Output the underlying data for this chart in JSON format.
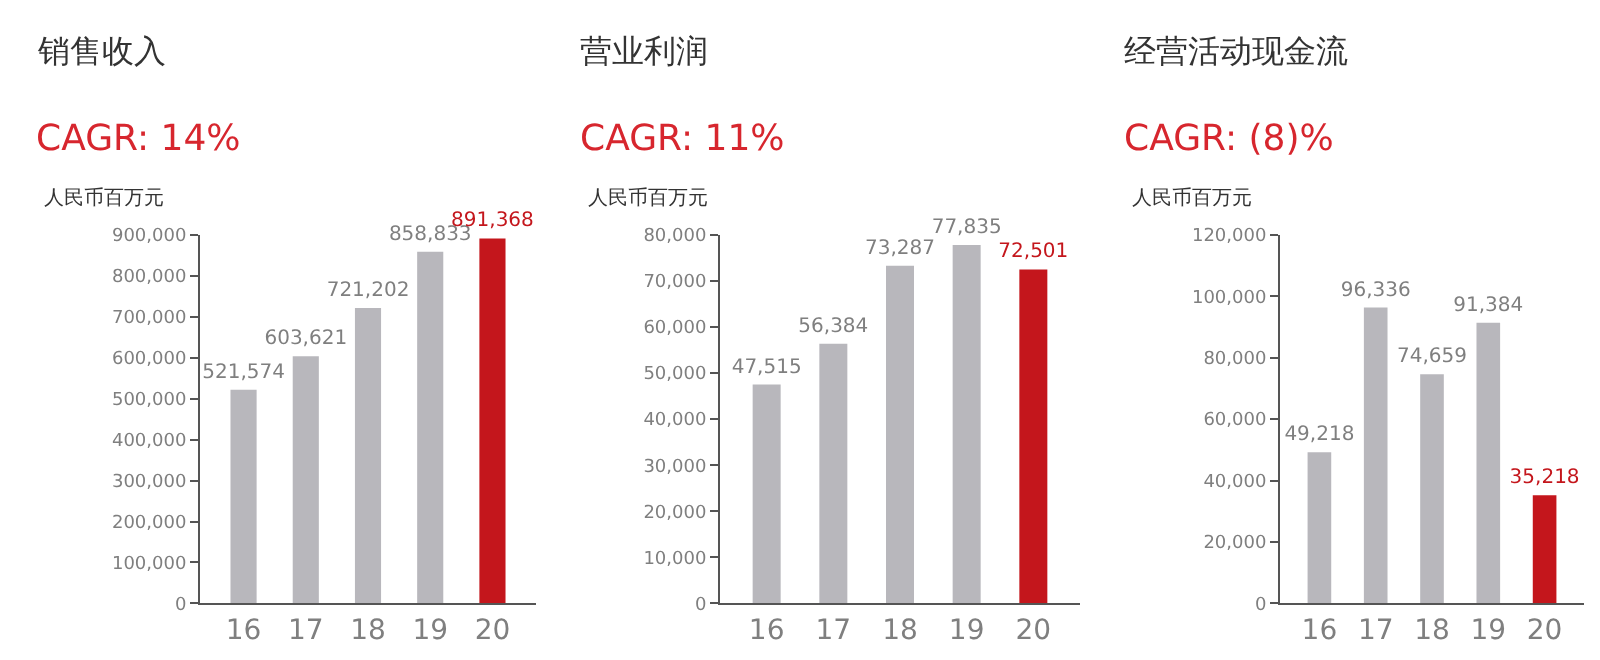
{
  "chart_data": [
    {
      "type": "bar",
      "title": "销售收入",
      "subtitle": "CAGR: 14%",
      "ylabel": "人民币百万元",
      "categories": [
        "16",
        "17",
        "18",
        "19",
        "20"
      ],
      "values": [
        521574,
        603621,
        721202,
        858833,
        891368
      ],
      "value_labels": [
        "521,574",
        "603,621",
        "721,202",
        "858,833",
        "891,368"
      ],
      "colors": [
        "#b8b7bc",
        "#b8b7bc",
        "#b8b7bc",
        "#b8b7bc",
        "#c4161c"
      ],
      "ylim": [
        0,
        900000
      ],
      "yticks": [
        {
          "value": 0,
          "label": "0"
        },
        {
          "value": 100000,
          "label": "100,000"
        },
        {
          "value": 200000,
          "label": "200,000"
        },
        {
          "value": 300000,
          "label": "300,000"
        },
        {
          "value": 400000,
          "label": "400,000"
        },
        {
          "value": 500000,
          "label": "500,000"
        },
        {
          "value": 600000,
          "label": "600,000"
        },
        {
          "value": 700000,
          "label": "700,000"
        },
        {
          "value": 800000,
          "label": "800,000"
        },
        {
          "value": 900000,
          "label": "900,000"
        }
      ]
    },
    {
      "type": "bar",
      "title": "营业利润",
      "subtitle": "CAGR: 11%",
      "ylabel": "人民币百万元",
      "categories": [
        "16",
        "17",
        "18",
        "19",
        "20"
      ],
      "values": [
        47515,
        56384,
        73287,
        77835,
        72501
      ],
      "value_labels": [
        "47,515",
        "56,384",
        "73,287",
        "77,835",
        "72,501"
      ],
      "colors": [
        "#b8b7bc",
        "#b8b7bc",
        "#b8b7bc",
        "#b8b7bc",
        "#c4161c"
      ],
      "ylim": [
        0,
        80000
      ],
      "yticks": [
        {
          "value": 0,
          "label": "0"
        },
        {
          "value": 10000,
          "label": "10,000"
        },
        {
          "value": 20000,
          "label": "20,000"
        },
        {
          "value": 30000,
          "label": "30,000"
        },
        {
          "value": 40000,
          "label": "40,000"
        },
        {
          "value": 50000,
          "label": "50,000"
        },
        {
          "value": 60000,
          "label": "60,000"
        },
        {
          "value": 70000,
          "label": "70,000"
        },
        {
          "value": 80000,
          "label": "80,000"
        }
      ]
    },
    {
      "type": "bar",
      "title": "经营活动现金流",
      "subtitle": "CAGR: (8)%",
      "ylabel": "人民币百万元",
      "categories": [
        "16",
        "17",
        "18",
        "19",
        "20"
      ],
      "values": [
        49218,
        96336,
        74659,
        91384,
        35218
      ],
      "value_labels": [
        "49,218",
        "96,336",
        "74,659",
        "91,384",
        "35,218"
      ],
      "colors": [
        "#b8b7bc",
        "#b8b7bc",
        "#b8b7bc",
        "#b8b7bc",
        "#c4161c"
      ],
      "ylim": [
        0,
        120000
      ],
      "yticks": [
        {
          "value": 0,
          "label": "0"
        },
        {
          "value": 20000,
          "label": "20,000"
        },
        {
          "value": 40000,
          "label": "40,000"
        },
        {
          "value": 60000,
          "label": "60,000"
        },
        {
          "value": 80000,
          "label": "80,000"
        },
        {
          "value": 100000,
          "label": "100,000"
        },
        {
          "value": 120000,
          "label": "120,000"
        }
      ]
    }
  ]
}
